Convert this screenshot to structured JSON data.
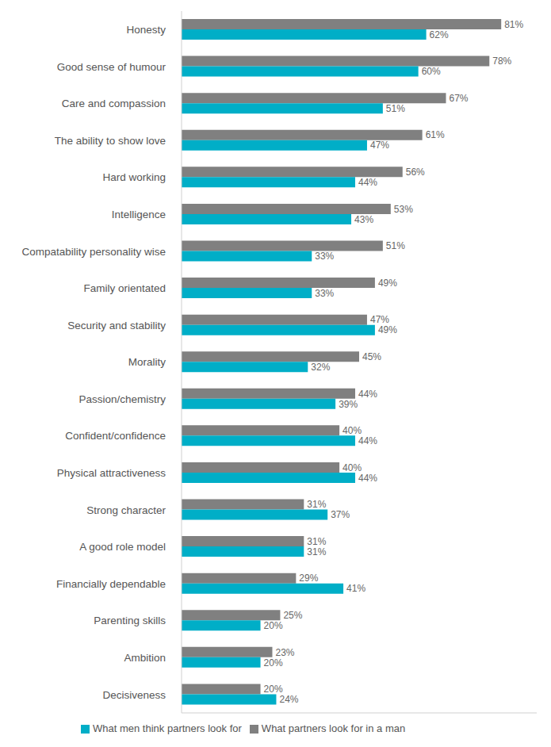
{
  "chart_data": {
    "type": "bar",
    "orientation": "horizontal",
    "categories": [
      "Honesty",
      "Good sense of humour",
      "Care and compassion",
      "The ability to show love",
      "Hard working",
      "Intelligence",
      "Compatability personality wise",
      "Family orientated",
      "Security and stability",
      "Morality",
      "Passion/chemistry",
      "Confident/confidence",
      "Physical attractiveness",
      "Strong character",
      "A good role model",
      "Financially dependable",
      "Parenting skills",
      "Ambition",
      "Decisiveness"
    ],
    "series": [
      {
        "name": "What partners look for in a man",
        "color": "#808080",
        "values": [
          81,
          78,
          67,
          61,
          56,
          53,
          51,
          49,
          47,
          45,
          44,
          40,
          40,
          31,
          31,
          29,
          25,
          23,
          20
        ],
        "value_labels": [
          "81%",
          "78%",
          "67%",
          "61%",
          "56%",
          "53%",
          "51%",
          "49%",
          "47%",
          "45%",
          "44%",
          "40%",
          "40%",
          "31%",
          "31%",
          "29%",
          "25%",
          "23%",
          "20%"
        ]
      },
      {
        "name": "What men think partners look for",
        "color": "#00AEC7",
        "values": [
          62,
          60,
          51,
          47,
          44,
          43,
          33,
          33,
          49,
          32,
          39,
          44,
          44,
          37,
          31,
          41,
          20,
          20,
          24
        ],
        "value_labels": [
          "62%",
          "60%",
          "51%",
          "47%",
          "44%",
          "43%",
          "33%",
          "33%",
          "49%",
          "32%",
          "39%",
          "44%",
          "44%",
          "37%",
          "31%",
          "41%",
          "20%",
          "20%",
          "24%"
        ]
      }
    ],
    "xlim": [
      0,
      90
    ],
    "data_labels": true,
    "tick_labels": "y",
    "legend": "bottom",
    "grid": false
  }
}
